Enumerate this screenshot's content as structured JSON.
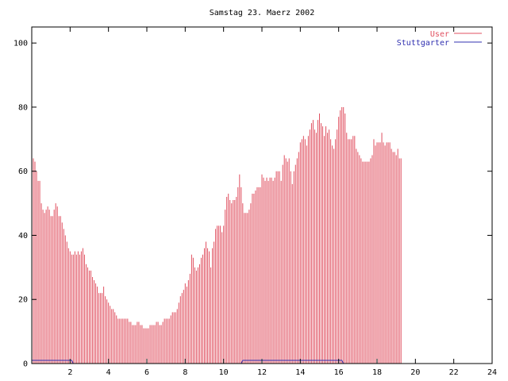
{
  "chart_data": {
    "type": "bar",
    "title": "Samstag 23. Maerz 2002",
    "xlabel": "",
    "ylabel": "",
    "xlim": [
      0,
      24
    ],
    "ylim": [
      0,
      105
    ],
    "x_ticks": [
      2,
      4,
      6,
      8,
      10,
      12,
      14,
      16,
      18,
      20,
      22,
      24
    ],
    "y_ticks": [
      0,
      20,
      40,
      60,
      80,
      100
    ],
    "grid": false,
    "legend": "top-right",
    "x_step_hours": 0.0833333,
    "series": [
      {
        "name": "User",
        "color": "#e05060",
        "style": "impulses",
        "values": [
          64,
          64,
          63,
          60,
          57,
          57,
          50,
          48,
          47,
          48,
          49,
          48,
          46,
          46,
          48,
          50,
          49,
          46,
          46,
          44,
          42,
          40,
          38,
          36,
          35,
          34,
          34,
          35,
          34,
          35,
          34,
          35,
          36,
          34,
          31,
          30,
          29,
          29,
          27,
          26,
          25,
          24,
          22,
          22,
          22,
          24,
          21,
          20,
          19,
          18,
          17,
          17,
          16,
          15,
          14,
          14,
          14,
          14,
          14,
          14,
          14,
          13,
          13,
          12,
          12,
          12,
          13,
          13,
          12,
          12,
          11,
          11,
          11,
          11,
          12,
          12,
          12,
          12,
          13,
          13,
          12,
          12,
          13,
          14,
          14,
          14,
          14,
          15,
          16,
          16,
          16,
          17,
          19,
          21,
          22,
          23,
          25,
          24,
          26,
          28,
          34,
          33,
          30,
          29,
          30,
          31,
          33,
          34,
          36,
          38,
          36,
          35,
          30,
          36,
          38,
          42,
          43,
          43,
          43,
          41,
          43,
          48,
          52,
          53,
          51,
          50,
          51,
          51,
          52,
          55,
          59,
          55,
          50,
          47,
          47,
          47,
          48,
          50,
          53,
          53,
          54,
          55,
          55,
          55,
          59,
          58,
          57,
          58,
          57,
          58,
          58,
          57,
          58,
          60,
          60,
          60,
          57,
          62,
          65,
          64,
          63,
          64,
          60,
          56,
          60,
          62,
          64,
          66,
          69,
          70,
          71,
          70,
          68,
          71,
          73,
          75,
          76,
          73,
          72,
          76,
          78,
          75,
          74,
          71,
          74,
          72,
          73,
          70,
          68,
          67,
          70,
          73,
          77,
          79,
          80,
          80,
          78,
          72,
          70,
          70,
          70,
          71,
          71,
          67,
          66,
          65,
          64,
          63,
          63,
          63,
          63,
          63,
          64,
          65,
          70,
          68,
          69,
          69,
          69,
          72,
          69,
          68,
          69,
          69,
          69,
          67,
          66,
          66,
          65,
          67,
          64,
          64
        ]
      },
      {
        "name": "Stuttgarter",
        "color": "#3030b0",
        "style": "line",
        "values": [
          1,
          1,
          1,
          1,
          1,
          1,
          1,
          1,
          1,
          1,
          1,
          1,
          1,
          1,
          1,
          1,
          1,
          1,
          1,
          1,
          1,
          1,
          1,
          1,
          1,
          1,
          0,
          0,
          0,
          0,
          0,
          0,
          0,
          0,
          0,
          0,
          0,
          0,
          0,
          0,
          0,
          0,
          0,
          0,
          0,
          0,
          0,
          0,
          0,
          0,
          0,
          0,
          0,
          0,
          0,
          0,
          0,
          0,
          0,
          0,
          0,
          0,
          0,
          0,
          0,
          0,
          0,
          0,
          0,
          0,
          0,
          0,
          0,
          0,
          0,
          0,
          0,
          0,
          0,
          0,
          0,
          0,
          0,
          0,
          0,
          0,
          0,
          0,
          0,
          0,
          0,
          0,
          0,
          0,
          0,
          0,
          0,
          0,
          0,
          0,
          0,
          0,
          0,
          0,
          0,
          0,
          0,
          0,
          0,
          0,
          0,
          0,
          0,
          0,
          0,
          0,
          0,
          0,
          0,
          0,
          0,
          0,
          0,
          0,
          0,
          0,
          0,
          0,
          0,
          0,
          0,
          0,
          1,
          1,
          1,
          1,
          1,
          1,
          1,
          1,
          1,
          1,
          1,
          1,
          1,
          1,
          1,
          1,
          1,
          1,
          1,
          1,
          1,
          1,
          1,
          1,
          1,
          1,
          1,
          1,
          1,
          1,
          1,
          1,
          1,
          1,
          1,
          1,
          1,
          1,
          1,
          1,
          1,
          1,
          1,
          1,
          1,
          1,
          1,
          1,
          1,
          1,
          1,
          1,
          1,
          1,
          1,
          1,
          1,
          1,
          1,
          1,
          1,
          1,
          1,
          0,
          0,
          0,
          0,
          0,
          0,
          0,
          0,
          0,
          0,
          0,
          0,
          0,
          0,
          0,
          0,
          0,
          0,
          0,
          0,
          0,
          0,
          0,
          0,
          0,
          0,
          0,
          0,
          0,
          0,
          0,
          0,
          0,
          0,
          0,
          0,
          0,
          0,
          0,
          0,
          0,
          0,
          0,
          0
        ]
      }
    ]
  }
}
